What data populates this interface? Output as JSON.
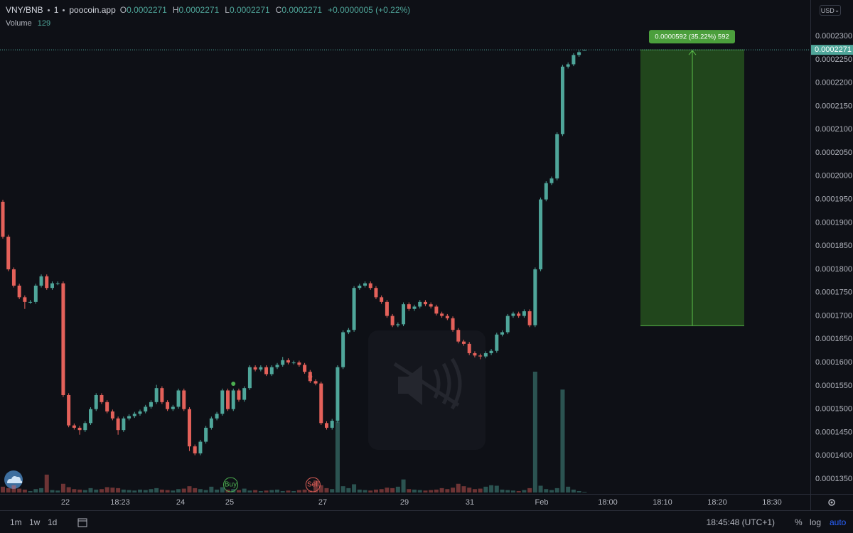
{
  "chart_data": {
    "type": "candlestick",
    "symbol": "VNY/BNB",
    "interval": "1",
    "source": "poocoin.app",
    "legend_keys": [
      "O",
      "H",
      "L",
      "C"
    ],
    "change": "+0.0000005 (+0.22%)",
    "volume_label": "Volume",
    "currency": "USD",
    "up_color": "#4fa69a",
    "down_color": "#e4615a",
    "open": [
      0.0001945,
      0.000187,
      0.00018,
      0.0001765,
      0.000174,
      0.000173,
      0.000173,
      0.0001765,
      0.0001785,
      0.000176,
      0.000177,
      0.000177,
      0.000153,
      0.0001465,
      0.000146,
      0.0001455,
      0.000147,
      0.00015,
      0.000153,
      0.0001515,
      0.0001495,
      0.000148,
      0.0001455,
      0.000148,
      0.0001485,
      0.000149,
      0.0001495,
      0.0001505,
      0.0001515,
      0.0001545,
      0.0001515,
      0.00015,
      0.0001505,
      0.000154,
      0.00015,
      0.000142,
      0.0001405,
      0.000143,
      0.000146,
      0.000148,
      0.000149,
      0.000154,
      0.00015,
      0.000154,
      0.000152,
      0.0001545,
      0.000159,
      0.0001585,
      0.000159,
      0.0001575,
      0.000159,
      0.0001595,
      0.0001605,
      0.00016,
      0.00016,
      0.0001595,
      0.000158,
      0.000156,
      0.0001555,
      0.000147,
      0.000146,
      0.0001475,
      0.000159,
      0.0001665,
      0.000167,
      0.000176,
      0.0001765,
      0.000177,
      0.000176,
      0.000174,
      0.000173,
      0.00017,
      0.000168,
      0.0001682,
      0.0001725,
      0.0001715,
      0.000172,
      0.000173,
      0.0001725,
      0.000172,
      0.0001705,
      0.00017,
      0.0001695,
      0.000167,
      0.0001645,
      0.000164,
      0.000162,
      0.0001615,
      0.0001613,
      0.000162,
      0.0001625,
      0.000166,
      0.0001665,
      0.00017,
      0.0001705,
      0.00017,
      0.000171,
      0.000168,
      0.00018,
      0.000195,
      0.0001985,
      0.0001995,
      0.000209,
      0.0002235,
      0.000224,
      0.000226,
      0.0002271
    ],
    "high": [
      0.0001949,
      0.0001874,
      0.0001804,
      0.0001769,
      0.0001744,
      0.0001734,
      0.0001769,
      0.0001789,
      0.0001789,
      0.0001774,
      0.0001774,
      0.0001774,
      0.0001534,
      0.0001469,
      0.0001464,
      0.0001474,
      0.0001504,
      0.0001534,
      0.0001534,
      0.0001519,
      0.0001499,
      0.0001484,
      0.0001484,
      0.0001489,
      0.0001494,
      0.0001499,
      0.0001509,
      0.0001519,
      0.0001552,
      0.0001549,
      0.0001519,
      0.0001509,
      0.0001544,
      0.0001544,
      0.0001504,
      0.0001424,
      0.0001434,
      0.0001464,
      0.0001484,
      0.0001494,
      0.0001544,
      0.0001544,
      0.0001544,
      0.0001544,
      0.0001549,
      0.0001594,
      0.0001594,
      0.0001594,
      0.0001594,
      0.0001594,
      0.0001599,
      0.0001612,
      0.0001609,
      0.0001604,
      0.0001604,
      0.0001599,
      0.0001584,
      0.0001564,
      0.0001559,
      0.0001474,
      0.0001479,
      0.0001594,
      0.0001669,
      0.0001674,
      0.0001764,
      0.0001769,
      0.0001774,
      0.0001774,
      0.0001764,
      0.0001744,
      0.0001734,
      0.0001704,
      0.0001686,
      0.0001729,
      0.0001729,
      0.0001724,
      0.0001734,
      0.0001734,
      0.0001729,
      0.0001724,
      0.0001709,
      0.0001704,
      0.0001699,
      0.0001674,
      0.0001649,
      0.0001644,
      0.0001624,
      0.0001619,
      0.0001624,
      0.0001629,
      0.0001664,
      0.0001669,
      0.0001704,
      0.0001709,
      0.0001709,
      0.0001714,
      0.0001714,
      0.0001804,
      0.0001954,
      0.0001989,
      0.0001999,
      0.0002094,
      0.0002239,
      0.0002244,
      0.0002264,
      0.000227,
      0.0002271
    ],
    "low": [
      0.0001866,
      0.0001796,
      0.0001761,
      0.0001736,
      0.0001715,
      0.0001726,
      0.0001726,
      0.0001761,
      0.0001756,
      0.0001756,
      0.0001766,
      0.0001526,
      0.0001461,
      0.0001456,
      0.0001445,
      0.0001451,
      0.0001466,
      0.0001496,
      0.0001511,
      0.0001491,
      0.0001476,
      0.0001445,
      0.0001451,
      0.0001476,
      0.0001481,
      0.0001486,
      0.0001491,
      0.0001501,
      0.0001511,
      0.0001511,
      0.0001496,
      0.0001496,
      0.0001501,
      0.0001496,
      0.000141,
      0.0001401,
      0.0001401,
      0.0001426,
      0.0001456,
      0.0001476,
      0.0001486,
      0.0001496,
      0.0001496,
      0.0001516,
      0.0001516,
      0.0001541,
      0.0001581,
      0.0001581,
      0.0001571,
      0.0001571,
      0.0001586,
      0.0001591,
      0.0001596,
      0.0001596,
      0.0001591,
      0.0001576,
      0.0001556,
      0.0001551,
      0.0001466,
      0.0001456,
      0.0001456,
      0.0001471,
      0.0001586,
      0.0001661,
      0.0001666,
      0.0001756,
      0.0001761,
      0.0001756,
      0.0001736,
      0.0001726,
      0.0001696,
      0.0001676,
      0.0001676,
      0.0001678,
      0.0001711,
      0.0001711,
      0.0001716,
      0.0001721,
      0.0001716,
      0.0001701,
      0.0001696,
      0.0001691,
      0.0001666,
      0.0001641,
      0.0001636,
      0.0001616,
      0.0001611,
      0.0001607,
      0.0001609,
      0.0001616,
      0.0001621,
      0.0001656,
      0.0001661,
      0.0001696,
      0.0001696,
      0.0001696,
      0.0001676,
      0.0001676,
      0.0001796,
      0.0001946,
      0.0001981,
      0.0001991,
      0.0002086,
      0.0002231,
      0.0002236,
      0.0002256,
      0.0002271
    ],
    "close": [
      0.000187,
      0.00018,
      0.0001765,
      0.000174,
      0.000173,
      0.000173,
      0.0001765,
      0.0001785,
      0.000176,
      0.000177,
      0.000177,
      0.000153,
      0.0001465,
      0.000146,
      0.0001455,
      0.000147,
      0.00015,
      0.000153,
      0.0001515,
      0.0001495,
      0.000148,
      0.0001455,
      0.000148,
      0.0001485,
      0.000149,
      0.0001495,
      0.0001505,
      0.0001515,
      0.0001545,
      0.0001515,
      0.00015,
      0.0001505,
      0.000154,
      0.00015,
      0.000142,
      0.0001405,
      0.000143,
      0.000146,
      0.000148,
      0.000149,
      0.000154,
      0.00015,
      0.000154,
      0.000152,
      0.0001545,
      0.000159,
      0.0001585,
      0.000159,
      0.0001575,
      0.000159,
      0.0001595,
      0.0001605,
      0.00016,
      0.00016,
      0.0001595,
      0.000158,
      0.000156,
      0.0001555,
      0.000147,
      0.000146,
      0.0001475,
      0.000159,
      0.0001665,
      0.000167,
      0.000176,
      0.0001765,
      0.000177,
      0.000176,
      0.000174,
      0.000173,
      0.00017,
      0.000168,
      0.0001682,
      0.0001725,
      0.0001715,
      0.000172,
      0.000173,
      0.0001725,
      0.000172,
      0.0001705,
      0.00017,
      0.0001695,
      0.000167,
      0.0001645,
      0.000164,
      0.000162,
      0.0001615,
      0.0001613,
      0.000162,
      0.0001625,
      0.000166,
      0.0001665,
      0.00017,
      0.0001705,
      0.00017,
      0.000171,
      0.000168,
      0.00018,
      0.000195,
      0.0001985,
      0.0001995,
      0.000209,
      0.0002235,
      0.000224,
      0.000226,
      0.0002266,
      0.0002271
    ],
    "volume": [
      1200,
      900,
      1500,
      800,
      600,
      300,
      700,
      900,
      3700,
      500,
      400,
      1800,
      1100,
      700,
      600,
      500,
      900,
      600,
      700,
      1100,
      1000,
      900,
      600,
      500,
      400,
      600,
      500,
      700,
      900,
      600,
      500,
      400,
      700,
      800,
      1300,
      900,
      700,
      500,
      1200,
      600,
      1100,
      600,
      700,
      500,
      800,
      400,
      500,
      300,
      400,
      500,
      600,
      300,
      400,
      300,
      500,
      600,
      400,
      2500,
      1500,
      900,
      700,
      14700,
      1300,
      900,
      1700,
      600,
      500,
      400,
      600,
      700,
      1000,
      900,
      1200,
      2700,
      700,
      600,
      500,
      400,
      500,
      600,
      900,
      700,
      1000,
      1800,
      1300,
      1000,
      700,
      800,
      1200,
      1500,
      1400,
      600,
      500,
      400,
      300,
      500,
      900,
      25000,
      1400,
      700,
      500,
      900,
      21300,
      1200,
      600,
      300,
      129
    ],
    "ylim": [
      0.0001318,
      0.0002378
    ],
    "yticks": [
      {
        "value": 0.000135,
        "label": "0.0001350"
      },
      {
        "value": 0.00014,
        "label": "0.0001400"
      },
      {
        "value": 0.000145,
        "label": "0.0001450"
      },
      {
        "value": 0.00015,
        "label": "0.0001500"
      },
      {
        "value": 0.000155,
        "label": "0.0001550"
      },
      {
        "value": 0.00016,
        "label": "0.0001600"
      },
      {
        "value": 0.000165,
        "label": "0.0001650"
      },
      {
        "value": 0.00017,
        "label": "0.0001700"
      },
      {
        "value": 0.000175,
        "label": "0.0001750"
      },
      {
        "value": 0.00018,
        "label": "0.0001800"
      },
      {
        "value": 0.000185,
        "label": "0.0001850"
      },
      {
        "value": 0.00019,
        "label": "0.0001900"
      },
      {
        "value": 0.000195,
        "label": "0.0001950"
      },
      {
        "value": 0.0002,
        "label": "0.0002000"
      },
      {
        "value": 0.000205,
        "label": "0.0002050"
      },
      {
        "value": 0.00021,
        "label": "0.0002100"
      },
      {
        "value": 0.000215,
        "label": "0.0002150"
      },
      {
        "value": 0.00022,
        "label": "0.0002200"
      },
      {
        "value": 0.000225,
        "label": "0.0002250"
      },
      {
        "value": 0.00023,
        "label": "0.0002300"
      }
    ],
    "xtick_labels": [
      "22",
      "18:23",
      "24",
      "25",
      "27",
      "29",
      "31",
      "Feb",
      "18:00",
      "18:10",
      "18:20",
      "18:30"
    ],
    "trade_markers": [
      "Buy",
      "Sell"
    ],
    "measure": {
      "label": "0.0000592 (35.22%) 592",
      "from": 0.0001679,
      "to": 0.0002271
    }
  },
  "toolbar": {
    "ranges": [
      "1m",
      "1w",
      "1d"
    ],
    "clock": "18:45:48 (UTC+1)",
    "options": [
      "%",
      "log",
      "auto"
    ]
  }
}
